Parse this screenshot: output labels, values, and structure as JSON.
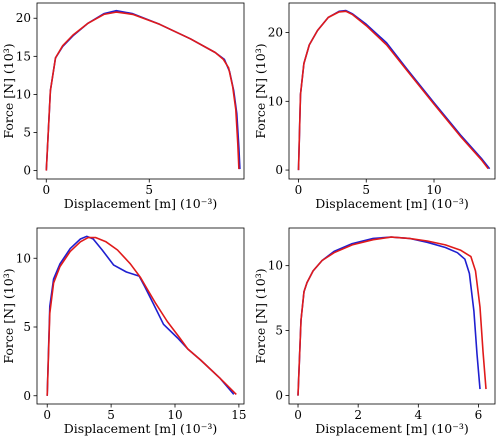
{
  "colors": {
    "series_blue": "#1f1fd0",
    "series_red": "#e01a1a",
    "axis": "#000000"
  },
  "chart_data": [
    {
      "type": "line",
      "title": "",
      "xlabel": "Displacement [m] (10⁻³)",
      "ylabel": "Force [N] (10³)",
      "xlim": [
        -0.45,
        9.6
      ],
      "ylim": [
        -1.1,
        22.0
      ],
      "xticks": [
        0,
        5
      ],
      "yticks": [
        0,
        5,
        10,
        15,
        20
      ],
      "grid": false,
      "series": [
        {
          "color": "#1f1fd0",
          "x": [
            0,
            0.2,
            0.45,
            0.8,
            1.3,
            2.0,
            2.8,
            3.4,
            4.2,
            5.5,
            7.0,
            8.2,
            8.65,
            8.9,
            9.1,
            9.25,
            9.35,
            9.4
          ],
          "y": [
            0,
            10.5,
            14.8,
            16.3,
            17.7,
            19.3,
            20.6,
            21.0,
            20.6,
            19.2,
            17.3,
            15.5,
            14.6,
            13.0,
            10.5,
            7.5,
            3.0,
            0.2
          ]
        },
        {
          "color": "#e01a1a",
          "x": [
            0,
            0.2,
            0.45,
            0.8,
            1.3,
            2.0,
            2.8,
            3.4,
            4.2,
            5.5,
            7.0,
            8.2,
            8.6,
            8.85,
            9.05,
            9.2,
            9.3,
            9.35
          ],
          "y": [
            0,
            10.5,
            14.8,
            16.4,
            17.8,
            19.3,
            20.5,
            20.8,
            20.5,
            19.2,
            17.3,
            15.5,
            14.6,
            13.5,
            11.0,
            8.0,
            3.5,
            0.2
          ]
        }
      ]
    },
    {
      "type": "line",
      "title": "",
      "xlabel": "Displacement [m] (10⁻³)",
      "ylabel": "Force [N] (10³)",
      "xlim": [
        -0.7,
        14.5
      ],
      "ylim": [
        -1.3,
        24.3
      ],
      "xticks": [
        0,
        5,
        10
      ],
      "yticks": [
        0,
        10,
        20
      ],
      "grid": false,
      "series": [
        {
          "color": "#1f1fd0",
          "x": [
            0,
            0.15,
            0.4,
            0.8,
            1.4,
            2.2,
            3.0,
            3.5,
            4.0,
            5.0,
            6.5,
            8.0,
            10.0,
            12.0,
            13.5,
            14.1
          ],
          "y": [
            0,
            11.0,
            15.5,
            18.2,
            20.3,
            22.2,
            23.1,
            23.2,
            22.7,
            21.2,
            18.5,
            14.7,
            9.8,
            5.0,
            1.7,
            0.2
          ]
        },
        {
          "color": "#e01a1a",
          "x": [
            0,
            0.15,
            0.4,
            0.8,
            1.4,
            2.2,
            3.0,
            3.5,
            4.0,
            5.0,
            6.5,
            8.0,
            10.0,
            12.0,
            13.5,
            14.0
          ],
          "y": [
            0,
            11.0,
            15.5,
            18.2,
            20.3,
            22.2,
            23.0,
            23.1,
            22.6,
            21.0,
            18.2,
            14.5,
            9.6,
            4.8,
            1.5,
            0.2
          ]
        }
      ]
    },
    {
      "type": "line",
      "title": "",
      "xlabel": "Displacement [m] (10⁻³)",
      "ylabel": "Force [N] (10³)",
      "xlim": [
        -0.8,
        15.4
      ],
      "ylim": [
        -0.6,
        12.2
      ],
      "xticks": [
        0,
        5,
        10,
        15
      ],
      "yticks": [
        0,
        5,
        10
      ],
      "grid": false,
      "series": [
        {
          "color": "#1f1fd0",
          "x": [
            0,
            0.2,
            0.5,
            1.0,
            1.8,
            2.6,
            3.1,
            3.6,
            4.3,
            5.2,
            6.2,
            7.2,
            7.6,
            8.3,
            9.1,
            10.2,
            11.0,
            12.0,
            13.5,
            14.6
          ],
          "y": [
            0,
            6.5,
            8.5,
            9.6,
            10.7,
            11.4,
            11.6,
            11.4,
            10.6,
            9.5,
            9.0,
            8.7,
            8.0,
            6.7,
            5.2,
            4.2,
            3.4,
            2.6,
            1.3,
            0.1
          ]
        },
        {
          "color": "#e01a1a",
          "x": [
            0,
            0.2,
            0.5,
            1.0,
            1.8,
            2.6,
            3.2,
            3.8,
            4.6,
            5.5,
            6.5,
            7.3,
            7.8,
            8.5,
            9.4,
            10.3,
            11.0,
            12.0,
            13.5,
            14.8
          ],
          "y": [
            0,
            6.0,
            8.2,
            9.4,
            10.5,
            11.2,
            11.5,
            11.5,
            11.2,
            10.6,
            9.6,
            8.6,
            7.8,
            6.7,
            5.4,
            4.3,
            3.4,
            2.6,
            1.3,
            0.1
          ]
        }
      ]
    },
    {
      "type": "line",
      "title": "",
      "xlabel": "Displacement [m] (10⁻³)",
      "ylabel": "Force [N] (10³)",
      "xlim": [
        -0.3,
        6.55
      ],
      "ylim": [
        -0.65,
        12.9
      ],
      "xticks": [
        0,
        2,
        4,
        6
      ],
      "yticks": [
        0,
        5,
        10
      ],
      "grid": false,
      "series": [
        {
          "color": "#1f1fd0",
          "x": [
            0,
            0.1,
            0.2,
            0.3,
            0.5,
            0.8,
            1.2,
            1.8,
            2.5,
            3.1,
            3.7,
            4.3,
            4.9,
            5.3,
            5.55,
            5.7,
            5.85,
            5.95,
            6.05
          ],
          "y": [
            0,
            5.8,
            8.0,
            8.7,
            9.6,
            10.4,
            11.1,
            11.7,
            12.1,
            12.2,
            12.1,
            11.8,
            11.4,
            11.0,
            10.5,
            9.4,
            6.5,
            3.2,
            0.5
          ]
        },
        {
          "color": "#e01a1a",
          "x": [
            0,
            0.1,
            0.2,
            0.3,
            0.5,
            0.8,
            1.2,
            1.8,
            2.5,
            3.1,
            3.7,
            4.3,
            4.9,
            5.4,
            5.75,
            5.9,
            6.05,
            6.15,
            6.25
          ],
          "y": [
            0,
            5.8,
            8.0,
            8.7,
            9.6,
            10.4,
            11.0,
            11.6,
            12.0,
            12.2,
            12.1,
            11.9,
            11.6,
            11.2,
            10.7,
            9.6,
            6.8,
            3.4,
            0.5
          ]
        }
      ]
    }
  ]
}
